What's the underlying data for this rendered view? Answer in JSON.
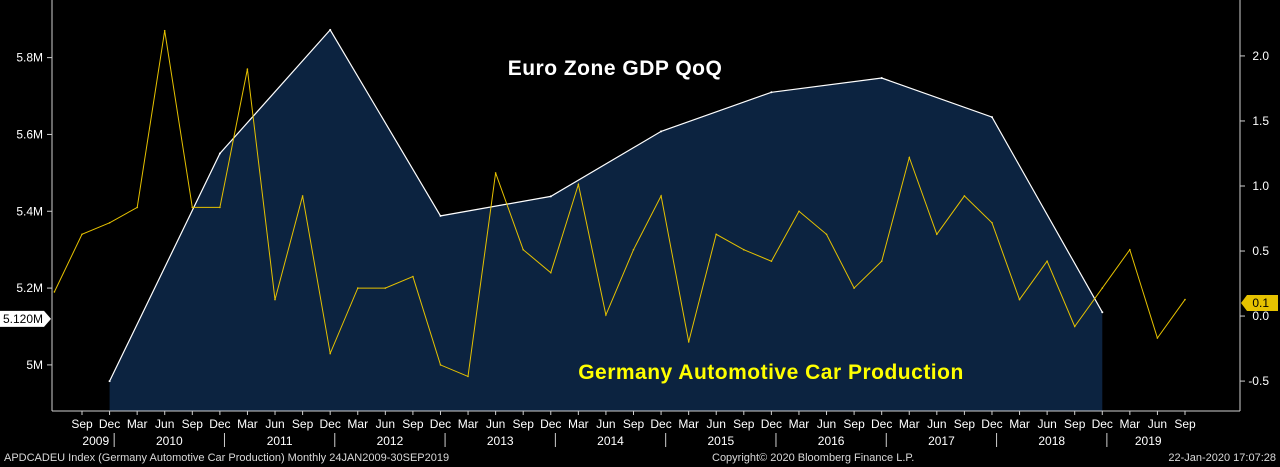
{
  "chart_data": {
    "type": "line",
    "background": "#000000",
    "x_start": "2009-09",
    "x_end": "2019-09",
    "year_labels": [
      "2009",
      "2010",
      "2011",
      "2012",
      "2013",
      "2014",
      "2015",
      "2016",
      "2017",
      "2018",
      "2019"
    ],
    "month_labels": [
      "Mar",
      "Jun",
      "Sep",
      "Dec"
    ],
    "series": [
      {
        "name": "Euro Zone GDP QoQ",
        "axis": "right",
        "style": "area",
        "line_color": "#ffffff",
        "fill_color": "#0c2340",
        "label_color": "#ffffff",
        "points": [
          {
            "x": "2009-12",
            "y": -0.5
          },
          {
            "x": "2010-12",
            "y": 1.25
          },
          {
            "x": "2011-12",
            "y": 2.2
          },
          {
            "x": "2012-12",
            "y": 0.77
          },
          {
            "x": "2013-12",
            "y": 0.92
          },
          {
            "x": "2014-12",
            "y": 1.42
          },
          {
            "x": "2015-12",
            "y": 1.72
          },
          {
            "x": "2016-12",
            "y": 1.83
          },
          {
            "x": "2017-12",
            "y": 1.53
          },
          {
            "x": "2018-12",
            "y": 0.03
          }
        ]
      },
      {
        "name": "Germany Automotive Car Production",
        "axis": "left",
        "style": "line",
        "line_color": "#e6c200",
        "label_color": "#ffff00",
        "points": [
          {
            "x": "2009-06",
            "y": 5.19
          },
          {
            "x": "2009-09",
            "y": 5.34
          },
          {
            "x": "2009-12",
            "y": 5.37
          },
          {
            "x": "2010-03",
            "y": 5.41
          },
          {
            "x": "2010-06",
            "y": 5.87
          },
          {
            "x": "2010-09",
            "y": 5.41
          },
          {
            "x": "2010-12",
            "y": 5.41
          },
          {
            "x": "2011-03",
            "y": 5.77
          },
          {
            "x": "2011-06",
            "y": 5.17
          },
          {
            "x": "2011-09",
            "y": 5.44
          },
          {
            "x": "2011-12",
            "y": 5.03
          },
          {
            "x": "2012-03",
            "y": 5.2
          },
          {
            "x": "2012-06",
            "y": 5.2
          },
          {
            "x": "2012-09",
            "y": 5.23
          },
          {
            "x": "2012-12",
            "y": 5.0
          },
          {
            "x": "2013-03",
            "y": 4.97
          },
          {
            "x": "2013-06",
            "y": 5.5
          },
          {
            "x": "2013-09",
            "y": 5.3
          },
          {
            "x": "2013-12",
            "y": 5.24
          },
          {
            "x": "2014-03",
            "y": 5.47
          },
          {
            "x": "2014-06",
            "y": 5.13
          },
          {
            "x": "2014-09",
            "y": 5.3
          },
          {
            "x": "2014-12",
            "y": 5.44
          },
          {
            "x": "2015-03",
            "y": 5.06
          },
          {
            "x": "2015-06",
            "y": 5.34
          },
          {
            "x": "2015-09",
            "y": 5.3
          },
          {
            "x": "2015-12",
            "y": 5.27
          },
          {
            "x": "2016-03",
            "y": 5.4
          },
          {
            "x": "2016-06",
            "y": 5.34
          },
          {
            "x": "2016-09",
            "y": 5.2
          },
          {
            "x": "2016-12",
            "y": 5.27
          },
          {
            "x": "2017-03",
            "y": 5.54
          },
          {
            "x": "2017-06",
            "y": 5.34
          },
          {
            "x": "2017-09",
            "y": 5.44
          },
          {
            "x": "2017-12",
            "y": 5.37
          },
          {
            "x": "2018-03",
            "y": 5.17
          },
          {
            "x": "2018-06",
            "y": 5.27
          },
          {
            "x": "2018-09",
            "y": 5.1
          },
          {
            "x": "2018-12",
            "y": 5.2
          },
          {
            "x": "2019-03",
            "y": 5.3
          },
          {
            "x": "2019-06",
            "y": 5.07
          },
          {
            "x": "2019-09",
            "y": 5.17
          }
        ]
      }
    ],
    "y_left": {
      "min": 4.88,
      "max": 5.95,
      "ticks": [
        {
          "value": 5.0,
          "label": "5M"
        },
        {
          "value": 5.2,
          "label": "5.2M"
        },
        {
          "value": 5.4,
          "label": "5.4M"
        },
        {
          "value": 5.6,
          "label": "5.6M"
        },
        {
          "value": 5.8,
          "label": "5.8M"
        }
      ],
      "marker": {
        "value": 5.12,
        "label": "5.120M"
      }
    },
    "y_right": {
      "min": -0.73,
      "max": 2.43,
      "ticks": [
        {
          "value": -0.5,
          "label": "-0.5"
        },
        {
          "value": 0.0,
          "label": "0.0"
        },
        {
          "value": 0.5,
          "label": "0.5"
        },
        {
          "value": 1.0,
          "label": "1.0"
        },
        {
          "value": 1.5,
          "label": "1.5"
        },
        {
          "value": 2.0,
          "label": "2.0"
        }
      ],
      "marker": {
        "value": 0.1,
        "label": "0.1",
        "color": "#e6c200"
      }
    }
  },
  "footer": {
    "left": "APDCADEU Index (Germany Automotive Car Production)  Monthly 24JAN2009-30SEP2019",
    "center": "Copyright© 2020 Bloomberg Finance L.P.",
    "right": "22-Jan-2020 17:07:28"
  }
}
